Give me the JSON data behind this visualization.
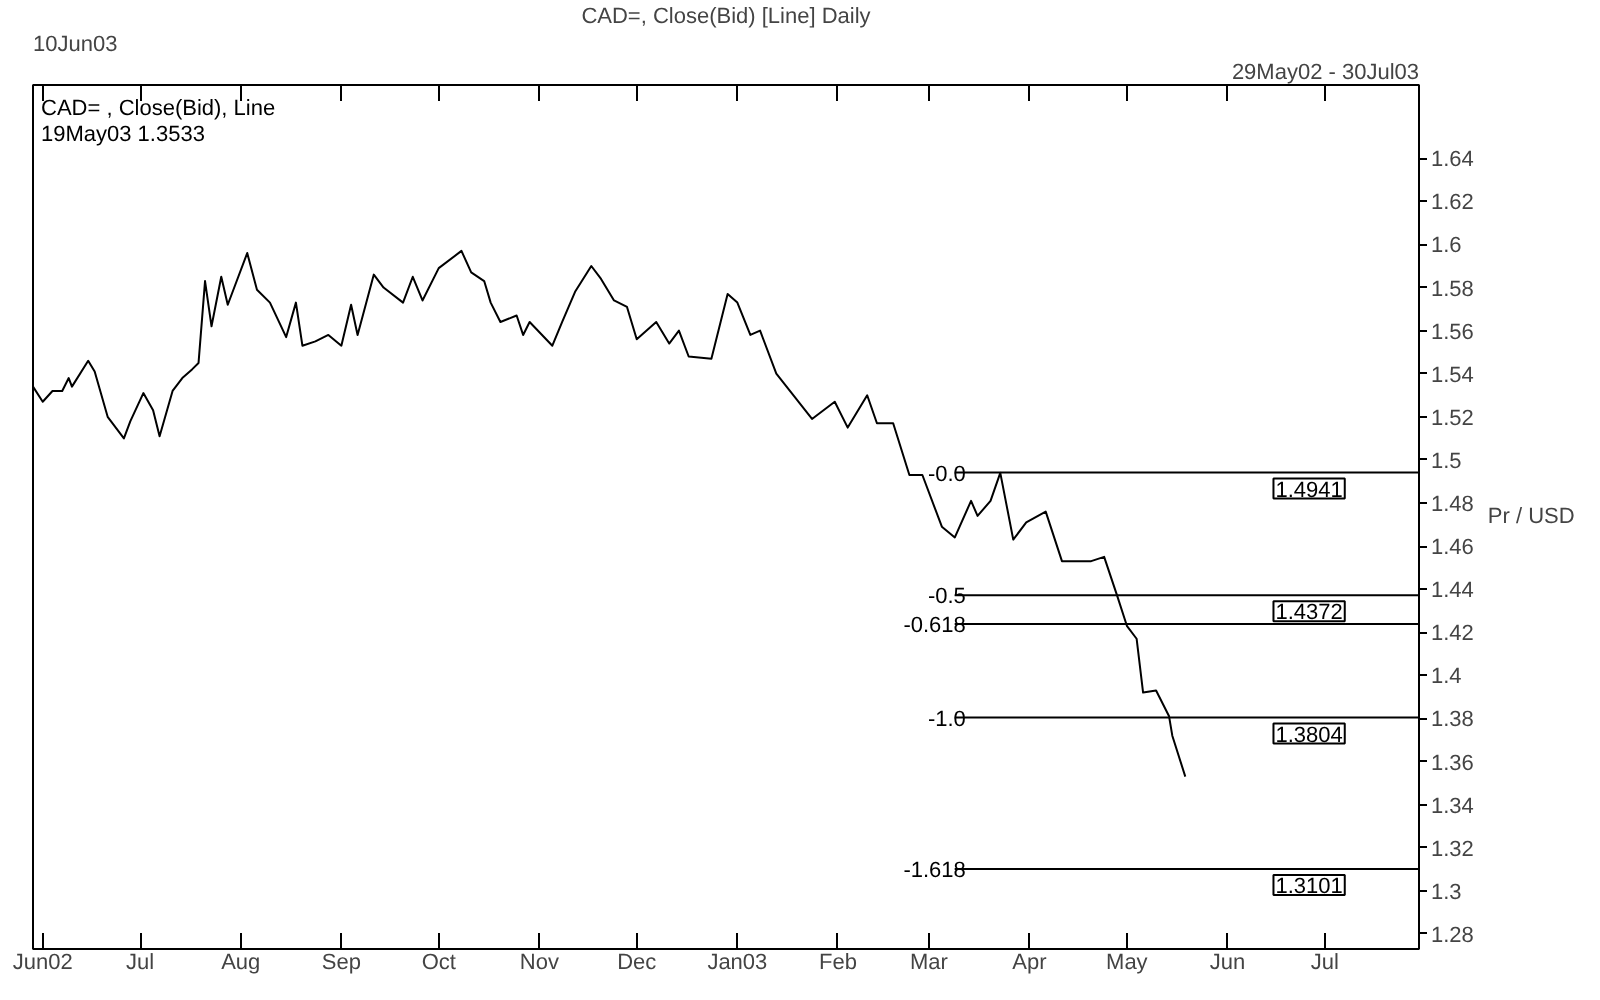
{
  "chart_data": {
    "type": "line",
    "title": "CAD=, Close(Bid) [Line] Daily",
    "ylabel": "Pr / USD",
    "annotations": [
      "10Jun03",
      "29May02 - 30Jul03",
      "CAD= , Close(Bid), Line",
      "19May03 1.3533",
      {
        "text": "-0.0",
        "x": "2003-03-13",
        "y": 1.4941
      },
      {
        "text": "-0.5",
        "x": "2003-03-13",
        "y": 1.4372
      },
      {
        "text": "-0.618",
        "x": "2003-03-13",
        "y": 1.4238
      },
      {
        "text": "-1.0",
        "x": "2003-03-13",
        "y": 1.3804
      },
      {
        "text": "-1.618",
        "x": "2003-03-13",
        "y": 1.3101
      }
    ],
    "x": [
      "2002-05-29",
      "2002-06-01",
      "2002-06-04",
      "2002-06-07",
      "2002-06-09",
      "2002-06-10",
      "2002-06-15",
      "2002-06-17",
      "2002-06-21",
      "2002-06-26",
      "2002-06-28",
      "2002-07-02",
      "2002-07-05",
      "2002-07-07",
      "2002-07-11",
      "2002-07-14",
      "2002-07-17",
      "2002-07-19",
      "2002-07-21",
      "2002-07-23",
      "2002-07-26",
      "2002-07-28",
      "2002-08-03",
      "2002-08-06",
      "2002-08-10",
      "2002-08-15",
      "2002-08-18",
      "2002-08-20",
      "2002-08-24",
      "2002-08-28",
      "2002-09-01",
      "2002-09-04",
      "2002-09-06",
      "2002-09-11",
      "2002-09-14",
      "2002-09-20",
      "2002-09-23",
      "2002-09-26",
      "2002-10-01",
      "2002-10-08",
      "2002-10-11",
      "2002-10-15",
      "2002-10-17",
      "2002-10-20",
      "2002-10-25",
      "2002-10-27",
      "2002-10-29",
      "2002-11-05",
      "2002-11-08",
      "2002-11-12",
      "2002-11-17",
      "2002-11-20",
      "2002-11-24",
      "2002-11-28",
      "2002-12-01",
      "2002-12-07",
      "2002-12-11",
      "2002-12-14",
      "2002-12-17",
      "2002-12-24",
      "2002-12-29",
      "2003-01-01",
      "2003-01-05",
      "2003-01-08",
      "2003-01-13",
      "2003-01-24",
      "2003-01-31",
      "2003-02-04",
      "2003-02-10",
      "2003-02-13",
      "2003-02-18",
      "2003-02-23",
      "2003-02-27",
      "2003-03-05",
      "2003-03-09",
      "2003-03-14",
      "2003-03-16",
      "2003-03-20",
      "2003-03-23",
      "2003-03-27",
      "2003-03-31",
      "2003-04-06",
      "2003-04-11",
      "2003-04-15",
      "2003-04-20",
      "2003-04-24",
      "2003-04-28",
      "2003-05-01",
      "2003-05-04",
      "2003-05-06",
      "2003-05-10",
      "2003-05-14",
      "2003-05-15",
      "2003-05-19"
    ],
    "series": [
      {
        "color": "#000000",
        "values": [
          1.534,
          1.527,
          1.532,
          1.532,
          1.538,
          1.534,
          1.546,
          1.541,
          1.52,
          1.51,
          1.518,
          1.531,
          1.523,
          1.511,
          1.532,
          1.538,
          1.542,
          1.545,
          1.583,
          1.562,
          1.585,
          1.572,
          1.596,
          1.579,
          1.573,
          1.557,
          1.573,
          1.553,
          1.555,
          1.558,
          1.553,
          1.572,
          1.558,
          1.586,
          1.58,
          1.573,
          1.585,
          1.574,
          1.589,
          1.597,
          1.587,
          1.583,
          1.573,
          1.564,
          1.567,
          1.558,
          1.564,
          1.553,
          1.564,
          1.578,
          1.59,
          1.584,
          1.574,
          1.571,
          1.556,
          1.564,
          1.554,
          1.56,
          1.548,
          1.547,
          1.577,
          1.573,
          1.558,
          1.56,
          1.54,
          1.519,
          1.527,
          1.515,
          1.53,
          1.517,
          1.517,
          1.493,
          1.493,
          1.469,
          1.464,
          1.481,
          1.474,
          1.481,
          1.494,
          1.463,
          1.471,
          1.476,
          1.453,
          1.453,
          1.453,
          1.455,
          1.437,
          1.423,
          1.417,
          1.392,
          1.393,
          1.381,
          1.372,
          1.353
        ]
      }
    ],
    "xlim": [
      "2002-05-29",
      "2003-07-30"
    ],
    "xticks": [
      {
        "value": "2002-06-01",
        "label": "Jun02"
      },
      {
        "value": "2002-07-01",
        "label": "Jul"
      },
      {
        "value": "2002-08-01",
        "label": "Aug"
      },
      {
        "value": "2002-09-01",
        "label": "Sep"
      },
      {
        "value": "2002-10-01",
        "label": "Oct"
      },
      {
        "value": "2002-11-01",
        "label": "Nov"
      },
      {
        "value": "2002-12-01",
        "label": "Dec"
      },
      {
        "value": "2003-01-01",
        "label": "Jan03"
      },
      {
        "value": "2003-02-01",
        "label": "Feb"
      },
      {
        "value": "2003-03-01",
        "label": "Mar"
      },
      {
        "value": "2003-04-01",
        "label": "Apr"
      },
      {
        "value": "2003-05-01",
        "label": "May"
      },
      {
        "value": "2003-06-01",
        "label": "Jun"
      },
      {
        "value": "2003-07-01",
        "label": "Jul"
      }
    ],
    "ylim": [
      1.273,
      1.674
    ],
    "yticks": [
      1.28,
      1.3,
      1.32,
      1.34,
      1.36,
      1.38,
      1.4,
      1.42,
      1.44,
      1.46,
      1.48,
      1.5,
      1.52,
      1.54,
      1.56,
      1.58,
      1.6,
      1.62,
      1.64
    ],
    "ref_lines": [
      {
        "axis": "y",
        "value": 1.4941,
        "label": "1.4941"
      },
      {
        "axis": "y",
        "value": 1.4372,
        "label": "1.4372"
      },
      {
        "axis": "y",
        "value": 1.4238
      },
      {
        "axis": "y",
        "value": 1.3804,
        "label": "1.3804"
      },
      {
        "axis": "y",
        "value": 1.3101,
        "label": "1.3101"
      }
    ]
  }
}
